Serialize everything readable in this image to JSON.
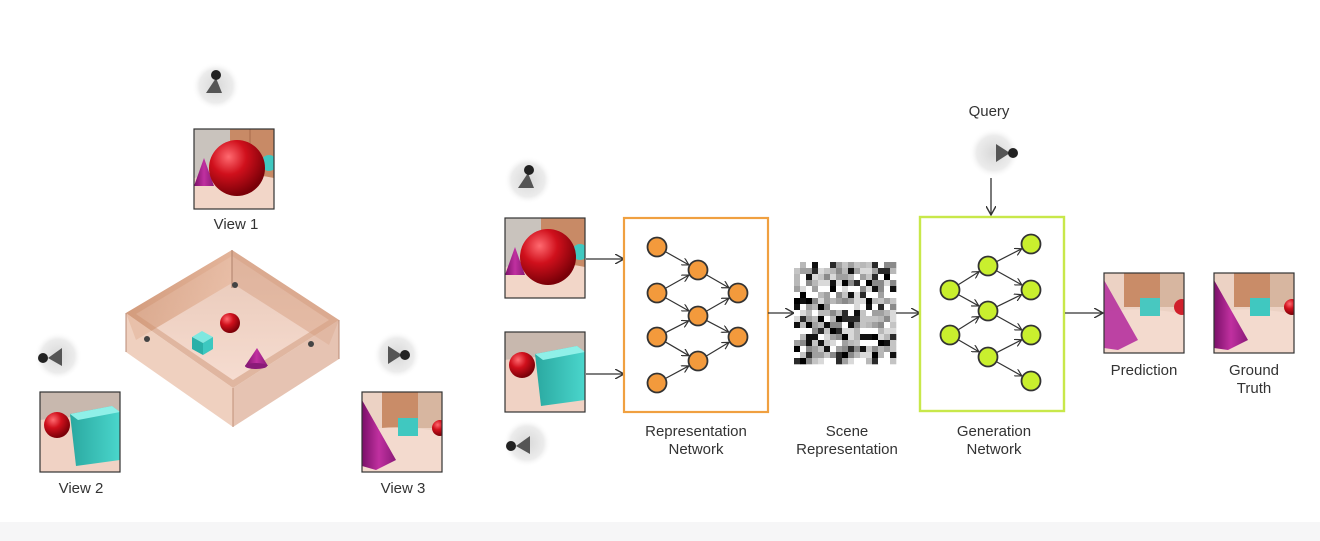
{
  "labels": {
    "view1": "View 1",
    "view2": "View 2",
    "view3": "View 3",
    "query": "Query",
    "rep_net_1": "Representation",
    "rep_net_2": "Network",
    "scene_rep_1": "Scene",
    "scene_rep_2": "Representation",
    "gen_net_1": "Generation",
    "gen_net_2": "Network",
    "prediction": "Prediction",
    "ground_truth_1": "Ground",
    "ground_truth_2": "Truth"
  },
  "colors": {
    "representation": "#f0a040",
    "representation_node": "#f39a3c",
    "generation": "#c8e84a",
    "generation_node": "#c9ef2e",
    "sphere": "#cc1020",
    "cube": "#3cc8c0",
    "cone": "#b02a90",
    "room_floor": "#f2d0c0",
    "wall": "#e0a886"
  },
  "icons": [
    "camera-icon",
    "arrow-icon"
  ]
}
